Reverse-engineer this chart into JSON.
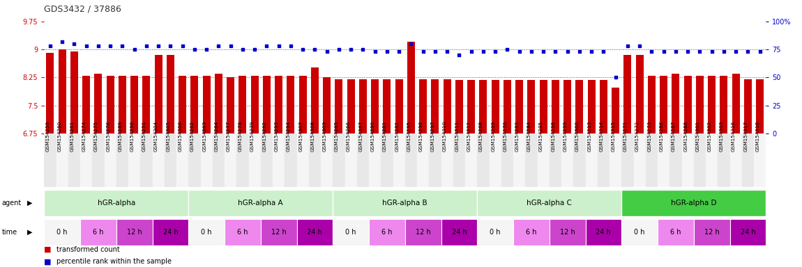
{
  "title": "GDS3432 / 37886",
  "ylim_left": [
    6.75,
    9.75
  ],
  "ylim_right": [
    0,
    100
  ],
  "yticks_left": [
    6.75,
    7.5,
    8.25,
    9.0,
    9.75
  ],
  "yticks_right": [
    0,
    25,
    50,
    75,
    100
  ],
  "ytick_labels_left": [
    "6.75",
    "7.5",
    "8.25",
    "9",
    "9.75"
  ],
  "ytick_labels_right": [
    "0",
    "25",
    "50",
    "75",
    "100%"
  ],
  "samples": [
    "GSM154259",
    "GSM154260",
    "GSM154261",
    "GSM154274",
    "GSM154275",
    "GSM154276",
    "GSM154289",
    "GSM154290",
    "GSM154291",
    "GSM154304",
    "GSM154305",
    "GSM154306",
    "GSM154262",
    "GSM154263",
    "GSM154264",
    "GSM154277",
    "GSM154278",
    "GSM154279",
    "GSM154292",
    "GSM154293",
    "GSM154294",
    "GSM154307",
    "GSM154308",
    "GSM154309",
    "GSM154265",
    "GSM154266",
    "GSM154267",
    "GSM154280",
    "GSM154281",
    "GSM154282",
    "GSM154295",
    "GSM154296",
    "GSM154297",
    "GSM154310",
    "GSM154311",
    "GSM154312",
    "GSM154268",
    "GSM154269",
    "GSM154270",
    "GSM154283",
    "GSM154284",
    "GSM154285",
    "GSM154298",
    "GSM154299",
    "GSM154300",
    "GSM154313",
    "GSM154314",
    "GSM154315",
    "GSM154271",
    "GSM154272",
    "GSM154273",
    "GSM154286",
    "GSM154287",
    "GSM154288",
    "GSM154301",
    "GSM154302",
    "GSM154303",
    "GSM154316",
    "GSM154317",
    "GSM154318"
  ],
  "bar_heights": [
    8.9,
    9.0,
    8.95,
    8.3,
    8.35,
    8.3,
    8.3,
    8.3,
    8.3,
    8.85,
    8.85,
    8.3,
    8.3,
    8.3,
    8.35,
    8.25,
    8.3,
    8.3,
    8.3,
    8.3,
    8.3,
    8.3,
    8.52,
    8.25,
    8.2,
    8.2,
    8.2,
    8.2,
    8.2,
    8.2,
    9.2,
    8.2,
    8.2,
    8.2,
    8.18,
    8.18,
    8.18,
    8.18,
    8.18,
    8.18,
    8.18,
    8.18,
    8.18,
    8.18,
    8.18,
    8.18,
    8.18,
    7.98,
    8.85,
    8.85,
    8.3,
    8.3,
    8.35,
    8.3,
    8.3,
    8.3,
    8.3,
    8.35,
    8.2,
    8.2
  ],
  "pct_vals": [
    78,
    82,
    80,
    78,
    78,
    78,
    78,
    75,
    78,
    78,
    78,
    78,
    75,
    75,
    78,
    78,
    75,
    75,
    78,
    78,
    78,
    75,
    75,
    73,
    75,
    75,
    75,
    73,
    73,
    73,
    80,
    73,
    73,
    73,
    70,
    73,
    73,
    73,
    75,
    73,
    73,
    73,
    73,
    73,
    73,
    73,
    73,
    50,
    78,
    78,
    73,
    73,
    73,
    73,
    73,
    73,
    73,
    73,
    73,
    73
  ],
  "agent_groups": [
    {
      "label": "hGR-alpha",
      "start": 0,
      "end": 12,
      "color": "#ccf0cc"
    },
    {
      "label": "hGR-alpha A",
      "start": 12,
      "end": 24,
      "color": "#ccf0cc"
    },
    {
      "label": "hGR-alpha B",
      "start": 24,
      "end": 36,
      "color": "#ccf0cc"
    },
    {
      "label": "hGR-alpha C",
      "start": 36,
      "end": 48,
      "color": "#ccf0cc"
    },
    {
      "label": "hGR-alpha D",
      "start": 48,
      "end": 60,
      "color": "#44cc44"
    }
  ],
  "time_labels_cycle": [
    "0 h",
    "6 h",
    "12 h",
    "24 h"
  ],
  "time_colors_cycle": [
    "#f5f5f5",
    "#ee88ee",
    "#cc44cc",
    "#aa00aa"
  ],
  "bar_color": "#cc0000",
  "dot_color": "#0000cc",
  "bg_color": "#ffffff",
  "grid_color": "#555555",
  "label_color_left": "#cc0000",
  "label_color_right": "#0000cc",
  "title_color": "#333333"
}
